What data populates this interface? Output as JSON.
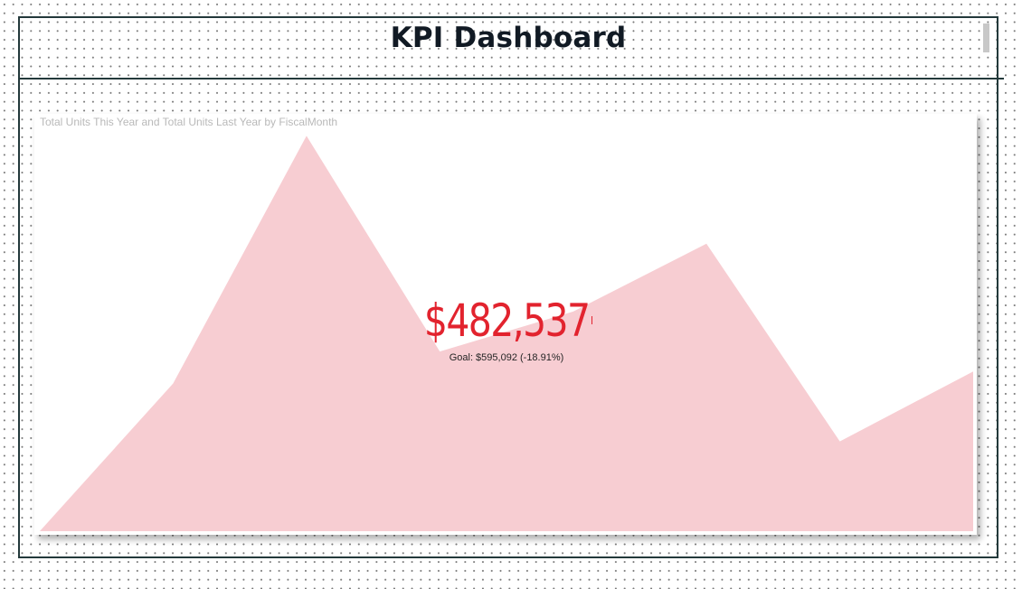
{
  "page": {
    "title": "KPI Dashboard"
  },
  "kpi": {
    "value": "$482,537",
    "goal_text": "Goal: $595,092 (-18.91%)",
    "status_color": "#e2232e",
    "trend_fill_color": "#f7cdd2"
  },
  "chart_data": {
    "type": "area",
    "title": "Total Units This Year and Total Units Last Year by FiscalMonth",
    "xlabel": "FiscalMonth",
    "ylabel": "",
    "x": [
      1,
      2,
      3,
      4,
      5,
      6,
      7,
      8
    ],
    "series": [
      {
        "name": "Total Units This Year",
        "values": [
          0,
          370,
          990,
          450,
          550,
          720,
          225,
          400
        ]
      }
    ],
    "ylim": [
      0,
      1000
    ],
    "grid": false,
    "legend": "none"
  }
}
